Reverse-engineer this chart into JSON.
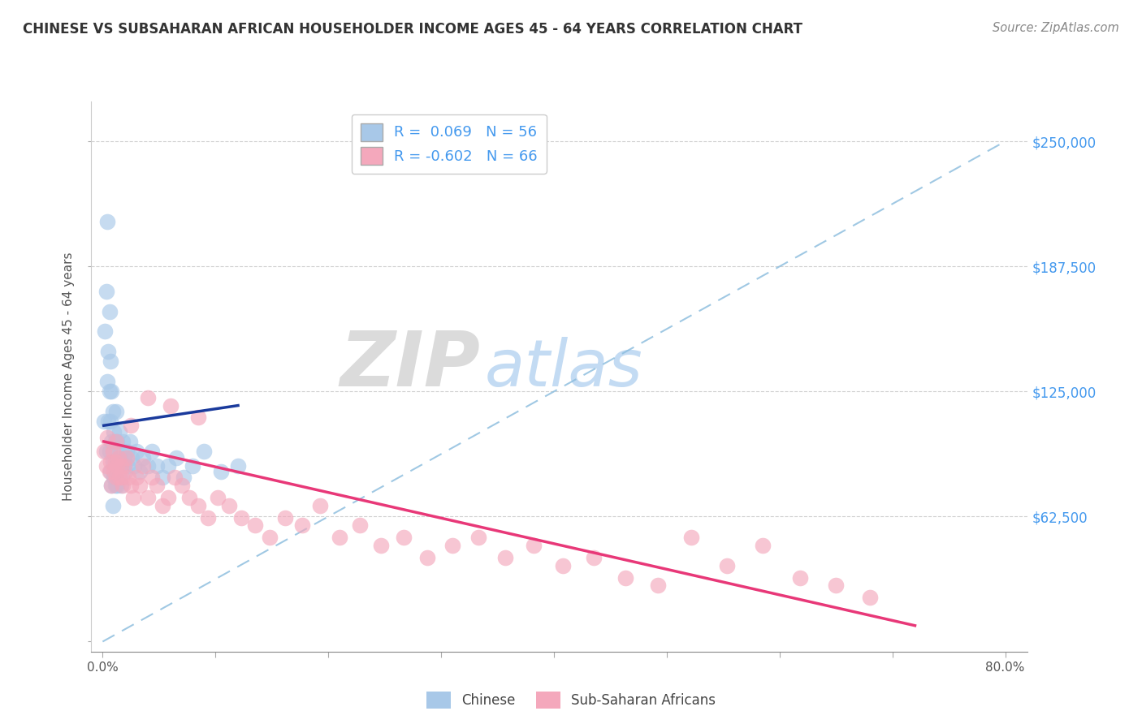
{
  "title": "CHINESE VS SUBSAHARAN AFRICAN HOUSEHOLDER INCOME AGES 45 - 64 YEARS CORRELATION CHART",
  "source": "Source: ZipAtlas.com",
  "ylabel": "Householder Income Ages 45 - 64 years",
  "xlim": [
    -0.01,
    0.82
  ],
  "ylim": [
    -5000,
    270000
  ],
  "yticks": [
    0,
    62500,
    125000,
    187500,
    250000
  ],
  "ytick_labels": [
    "",
    "$62,500",
    "$125,000",
    "$187,500",
    "$250,000"
  ],
  "xtick_positions": [
    0.0,
    0.1,
    0.2,
    0.3,
    0.4,
    0.5,
    0.6,
    0.7,
    0.8
  ],
  "xtick_labels": [
    "0.0%",
    "",
    "",
    "",
    "",
    "",
    "",
    "",
    "80.0%"
  ],
  "chinese_R": 0.069,
  "chinese_N": 56,
  "ssa_R": -0.602,
  "ssa_N": 66,
  "chinese_color": "#a8c8e8",
  "ssa_color": "#f4a8bc",
  "chinese_line_color": "#1a3a9c",
  "ssa_line_color": "#e83878",
  "ref_line_color": "#88bbdd",
  "background_color": "#ffffff",
  "watermark_ZIP": "ZIP",
  "watermark_atlas": "atlas",
  "watermark_ZIP_color": "#cccccc",
  "watermark_atlas_color": "#aaccee",
  "chinese_x": [
    0.001,
    0.002,
    0.003,
    0.003,
    0.004,
    0.004,
    0.005,
    0.005,
    0.006,
    0.006,
    0.006,
    0.007,
    0.007,
    0.007,
    0.008,
    0.008,
    0.008,
    0.009,
    0.009,
    0.009,
    0.01,
    0.01,
    0.011,
    0.011,
    0.012,
    0.012,
    0.013,
    0.013,
    0.014,
    0.015,
    0.015,
    0.016,
    0.016,
    0.017,
    0.018,
    0.019,
    0.02,
    0.021,
    0.022,
    0.024,
    0.026,
    0.028,
    0.03,
    0.033,
    0.036,
    0.04,
    0.044,
    0.048,
    0.053,
    0.058,
    0.065,
    0.072,
    0.08,
    0.09,
    0.105,
    0.12
  ],
  "chinese_y": [
    110000,
    155000,
    175000,
    95000,
    210000,
    130000,
    145000,
    110000,
    165000,
    125000,
    95000,
    140000,
    110000,
    85000,
    125000,
    100000,
    78000,
    115000,
    90000,
    68000,
    105000,
    82000,
    100000,
    78000,
    115000,
    88000,
    100000,
    78000,
    92000,
    88000,
    105000,
    78000,
    95000,
    88000,
    100000,
    92000,
    85000,
    95000,
    88000,
    100000,
    92000,
    88000,
    95000,
    85000,
    92000,
    88000,
    95000,
    88000,
    82000,
    88000,
    92000,
    82000,
    88000,
    95000,
    85000,
    88000
  ],
  "ssa_x": [
    0.001,
    0.003,
    0.004,
    0.006,
    0.007,
    0.008,
    0.009,
    0.01,
    0.011,
    0.012,
    0.013,
    0.014,
    0.015,
    0.016,
    0.017,
    0.018,
    0.019,
    0.021,
    0.023,
    0.025,
    0.027,
    0.03,
    0.033,
    0.036,
    0.04,
    0.044,
    0.048,
    0.053,
    0.058,
    0.064,
    0.07,
    0.077,
    0.085,
    0.093,
    0.102,
    0.112,
    0.123,
    0.135,
    0.148,
    0.162,
    0.177,
    0.193,
    0.21,
    0.228,
    0.247,
    0.267,
    0.288,
    0.31,
    0.333,
    0.357,
    0.382,
    0.408,
    0.435,
    0.463,
    0.492,
    0.522,
    0.553,
    0.585,
    0.618,
    0.65,
    0.68,
    0.012,
    0.025,
    0.04,
    0.06,
    0.085
  ],
  "ssa_y": [
    95000,
    88000,
    102000,
    85000,
    90000,
    78000,
    95000,
    85000,
    90000,
    82000,
    88000,
    92000,
    82000,
    88000,
    82000,
    78000,
    88000,
    92000,
    82000,
    78000,
    72000,
    82000,
    78000,
    88000,
    72000,
    82000,
    78000,
    68000,
    72000,
    82000,
    78000,
    72000,
    68000,
    62000,
    72000,
    68000,
    62000,
    58000,
    52000,
    62000,
    58000,
    68000,
    52000,
    58000,
    48000,
    52000,
    42000,
    48000,
    52000,
    42000,
    48000,
    38000,
    42000,
    32000,
    28000,
    52000,
    38000,
    48000,
    32000,
    28000,
    22000,
    100000,
    108000,
    122000,
    118000,
    112000
  ],
  "chinese_trend_x": [
    0.001,
    0.12
  ],
  "chinese_trend_y": [
    108000,
    118000
  ],
  "ssa_trend_x": [
    0.001,
    0.72
  ],
  "ssa_trend_y": [
    100000,
    8000
  ],
  "ref_line_x": [
    0.0,
    0.8
  ],
  "ref_line_y": [
    0,
    250000
  ]
}
